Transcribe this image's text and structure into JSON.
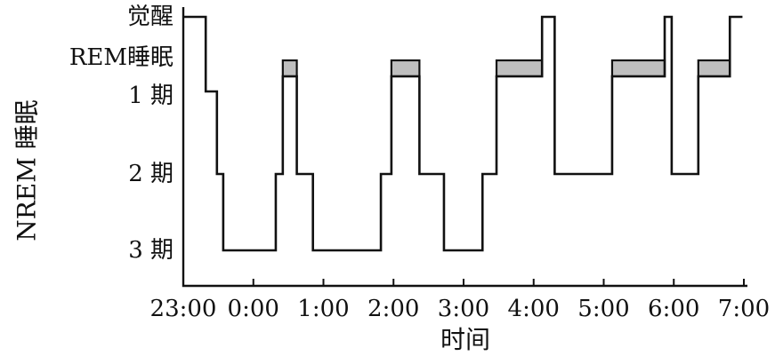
{
  "chart_data": {
    "type": "line",
    "title": "",
    "xlabel": "时间",
    "ylabel": "NREM 睡眠",
    "x_ticks": [
      "23:00",
      "0:00",
      "1:00",
      "2:00",
      "3:00",
      "4:00",
      "5:00",
      "6:00",
      "7:00"
    ],
    "x_range": [
      0,
      8
    ],
    "y_levels": [
      {
        "label": "觉醒",
        "stage": "wake"
      },
      {
        "label": "REM睡眠",
        "stage": "rem"
      },
      {
        "label": "1 期",
        "stage": "n1"
      },
      {
        "label": "2 期",
        "stage": "n2"
      },
      {
        "label": "3 期",
        "stage": "n3"
      }
    ],
    "hypnogram": [
      {
        "start": 0.0,
        "end": 0.32,
        "stage": "wake"
      },
      {
        "start": 0.32,
        "end": 0.48,
        "stage": "n1"
      },
      {
        "start": 0.48,
        "end": 0.57,
        "stage": "n2"
      },
      {
        "start": 0.57,
        "end": 1.32,
        "stage": "n3"
      },
      {
        "start": 1.32,
        "end": 1.42,
        "stage": "n2"
      },
      {
        "start": 1.42,
        "end": 1.62,
        "stage": "rem"
      },
      {
        "start": 1.62,
        "end": 1.85,
        "stage": "n2"
      },
      {
        "start": 1.85,
        "end": 2.82,
        "stage": "n3"
      },
      {
        "start": 2.82,
        "end": 2.97,
        "stage": "n2"
      },
      {
        "start": 2.97,
        "end": 3.37,
        "stage": "rem"
      },
      {
        "start": 3.37,
        "end": 3.72,
        "stage": "n2"
      },
      {
        "start": 3.72,
        "end": 4.27,
        "stage": "n3"
      },
      {
        "start": 4.27,
        "end": 4.47,
        "stage": "n2"
      },
      {
        "start": 4.47,
        "end": 5.12,
        "stage": "rem"
      },
      {
        "start": 5.12,
        "end": 5.3,
        "stage": "wake"
      },
      {
        "start": 5.3,
        "end": 6.12,
        "stage": "n2"
      },
      {
        "start": 6.12,
        "end": 6.87,
        "stage": "rem"
      },
      {
        "start": 6.87,
        "end": 6.97,
        "stage": "wake"
      },
      {
        "start": 6.97,
        "end": 7.35,
        "stage": "n2"
      },
      {
        "start": 7.35,
        "end": 7.8,
        "stage": "rem"
      },
      {
        "start": 7.8,
        "end": 7.98,
        "stage": "wake"
      }
    ],
    "rem_fill_color": "#bfbfbf",
    "line_color": "#111111"
  }
}
